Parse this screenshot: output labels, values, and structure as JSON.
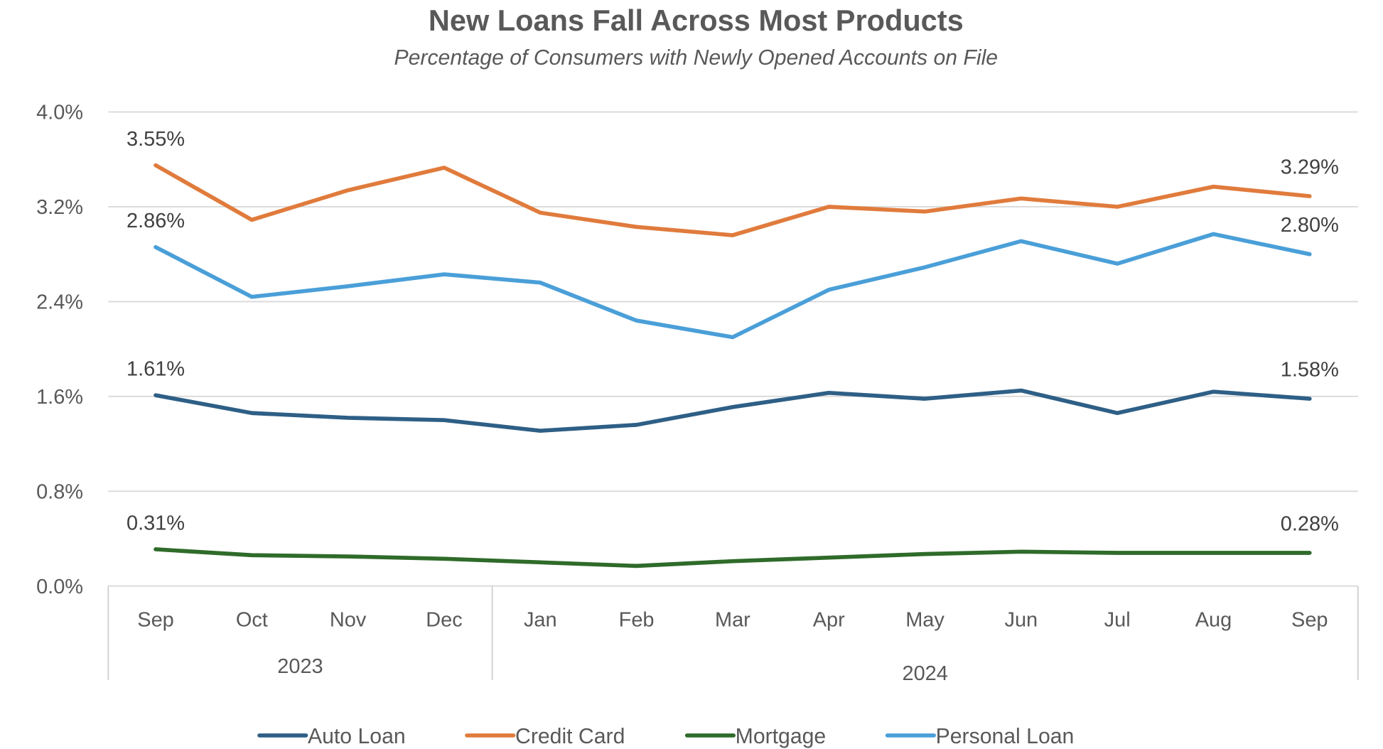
{
  "chart_data": {
    "type": "line",
    "title": "New Loans Fall Across Most Products",
    "subtitle": "Percentage of Consumers with Newly Opened Accounts on File",
    "xlabel": "",
    "ylabel": "",
    "ylim": [
      0,
      4.0
    ],
    "yticks": [
      "0.0%",
      "0.8%",
      "1.6%",
      "2.4%",
      "3.2%",
      "4.0%"
    ],
    "ytick_values": [
      0.0,
      0.8,
      1.6,
      2.4,
      3.2,
      4.0
    ],
    "grid": true,
    "legend_position": "bottom",
    "categories": [
      "Sep",
      "Oct",
      "Nov",
      "Dec",
      "Jan",
      "Feb",
      "Mar",
      "Apr",
      "May",
      "Jun",
      "Jul",
      "Aug",
      "Sep"
    ],
    "category_groups": [
      {
        "label": "2023",
        "start": 0,
        "end": 3
      },
      {
        "label": "2024",
        "start": 4,
        "end": 12
      }
    ],
    "series": [
      {
        "name": "Auto Loan",
        "color": "#2e5f86",
        "values": [
          1.61,
          1.46,
          1.42,
          1.4,
          1.31,
          1.36,
          1.51,
          1.63,
          1.58,
          1.65,
          1.46,
          1.64,
          1.58
        ],
        "labels": {
          "first": "1.61%",
          "last": "1.58%"
        }
      },
      {
        "name": "Credit Card",
        "color": "#e07b3c",
        "values": [
          3.55,
          3.09,
          3.34,
          3.53,
          3.15,
          3.03,
          2.96,
          3.2,
          3.16,
          3.27,
          3.2,
          3.37,
          3.29
        ],
        "labels": {
          "first": "3.55%",
          "last": "3.29%"
        }
      },
      {
        "name": "Mortgage",
        "color": "#2f6b2a",
        "values": [
          0.31,
          0.26,
          0.25,
          0.23,
          0.2,
          0.17,
          0.21,
          0.24,
          0.27,
          0.29,
          0.28,
          0.28,
          0.28
        ],
        "labels": {
          "first": "0.31%",
          "last": "0.28%"
        }
      },
      {
        "name": "Personal Loan",
        "color": "#4a9fd8",
        "values": [
          2.86,
          2.44,
          2.53,
          2.63,
          2.56,
          2.24,
          2.1,
          2.5,
          2.69,
          2.91,
          2.72,
          2.97,
          2.8
        ],
        "labels": {
          "first": "2.86%",
          "last": "2.80%"
        }
      }
    ]
  }
}
